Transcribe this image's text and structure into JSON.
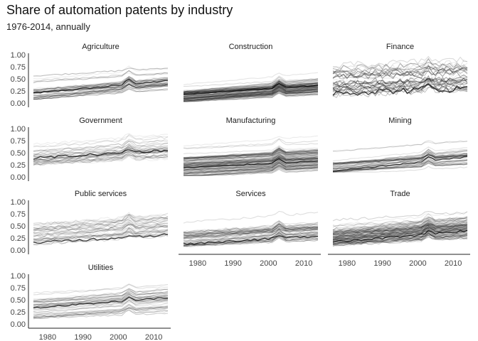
{
  "chart_data": {
    "type": "line",
    "title": "Share of automation patents by industry",
    "subtitle": "1976-2014, annually",
    "xlabel": "",
    "ylabel": "",
    "xlim": [
      1976,
      2014
    ],
    "ylim": [
      0,
      1
    ],
    "x_ticks": [
      1980,
      1990,
      2000,
      2010
    ],
    "y_ticks": [
      0,
      0.25,
      0.5,
      0.75,
      1
    ],
    "y_tick_labels": [
      "0.00",
      "0.25",
      "0.50",
      "0.75",
      "1.00"
    ],
    "grid": false,
    "legend": "none",
    "line_color": "#000000",
    "facet_layout": "3 columns, small multiples",
    "panels": [
      {
        "name": "Agriculture",
        "series_count": 40,
        "level_start": 0.17,
        "level_end": 0.4,
        "spread": 0.07,
        "ymin": 0.08,
        "ymax": 0.78,
        "noise": 0.015,
        "highlight": 0.22
      },
      {
        "name": "Construction",
        "series_count": 110,
        "level_start": 0.13,
        "level_end": 0.32,
        "spread": 0.07,
        "ymin": 0.03,
        "ymax": 0.7,
        "noise": 0.01,
        "highlight": 0.12
      },
      {
        "name": "Finance",
        "series_count": 35,
        "level_start": 0.45,
        "level_end": 0.55,
        "spread": 0.18,
        "ymin": 0.02,
        "ymax": 1.0,
        "noise": 0.07,
        "highlight": 0.35
      },
      {
        "name": "Government",
        "series_count": 35,
        "level_start": 0.4,
        "level_end": 0.58,
        "spread": 0.09,
        "ymin": 0.12,
        "ymax": 0.9,
        "noise": 0.025,
        "highlight": 0.15
      },
      {
        "name": "Manufacturing",
        "series_count": 130,
        "level_start": 0.2,
        "level_end": 0.35,
        "spread": 0.13,
        "ymin": 0.03,
        "ymax": 0.93,
        "noise": 0.012,
        "highlight": 0.1
      },
      {
        "name": "Mining",
        "series_count": 40,
        "level_start": 0.18,
        "level_end": 0.4,
        "spread": 0.07,
        "ymin": 0.1,
        "ymax": 0.75,
        "noise": 0.012,
        "highlight": 0.22
      },
      {
        "name": "Public services",
        "series_count": 40,
        "level_start": 0.33,
        "level_end": 0.5,
        "spread": 0.14,
        "ymin": 0.05,
        "ymax": 1.0,
        "noise": 0.03,
        "highlight": 0.12
      },
      {
        "name": "Services",
        "series_count": 60,
        "level_start": 0.22,
        "level_end": 0.4,
        "spread": 0.1,
        "ymin": 0.03,
        "ymax": 0.92,
        "noise": 0.02,
        "highlight": 0.12
      },
      {
        "name": "Trade",
        "series_count": 110,
        "level_start": 0.25,
        "level_end": 0.45,
        "spread": 0.1,
        "ymin": 0.03,
        "ymax": 0.8,
        "noise": 0.025,
        "highlight": 0.12
      },
      {
        "name": "Utilities",
        "series_count": 45,
        "level_start": 0.32,
        "level_end": 0.5,
        "spread": 0.13,
        "ymin": 0.08,
        "ymax": 0.95,
        "noise": 0.015,
        "highlight": 0.15
      }
    ]
  }
}
